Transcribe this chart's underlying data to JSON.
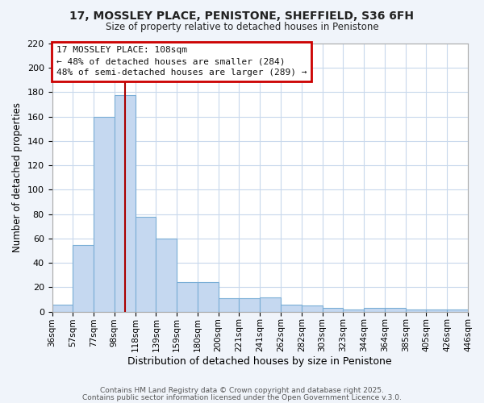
{
  "title": "17, MOSSLEY PLACE, PENISTONE, SHEFFIELD, S36 6FH",
  "subtitle": "Size of property relative to detached houses in Penistone",
  "xlabel": "Distribution of detached houses by size in Penistone",
  "ylabel": "Number of detached properties",
  "bin_labels": [
    "36sqm",
    "57sqm",
    "77sqm",
    "98sqm",
    "118sqm",
    "139sqm",
    "159sqm",
    "180sqm",
    "200sqm",
    "221sqm",
    "241sqm",
    "262sqm",
    "282sqm",
    "303sqm",
    "323sqm",
    "344sqm",
    "364sqm",
    "385sqm",
    "405sqm",
    "426sqm",
    "446sqm"
  ],
  "bar_heights": [
    6,
    55,
    160,
    178,
    78,
    60,
    24,
    24,
    11,
    11,
    12,
    6,
    5,
    3,
    2,
    3,
    3,
    2,
    2,
    2
  ],
  "bar_color": "#c5d8f0",
  "bar_edge_color": "#7aaed6",
  "vline_color": "#aa0000",
  "vline_x_index": 3.5,
  "ylim": [
    0,
    220
  ],
  "yticks": [
    0,
    20,
    40,
    60,
    80,
    100,
    120,
    140,
    160,
    180,
    200,
    220
  ],
  "annotation_title": "17 MOSSLEY PLACE: 108sqm",
  "annotation_line1": "← 48% of detached houses are smaller (284)",
  "annotation_line2": "48% of semi-detached houses are larger (289) →",
  "annotation_box_color": "#cc0000",
  "plot_bg_color": "#ffffff",
  "fig_bg_color": "#f0f4fa",
  "grid_color": "#c8d8ec",
  "footer_line1": "Contains HM Land Registry data © Crown copyright and database right 2025.",
  "footer_line2": "Contains public sector information licensed under the Open Government Licence v.3.0."
}
